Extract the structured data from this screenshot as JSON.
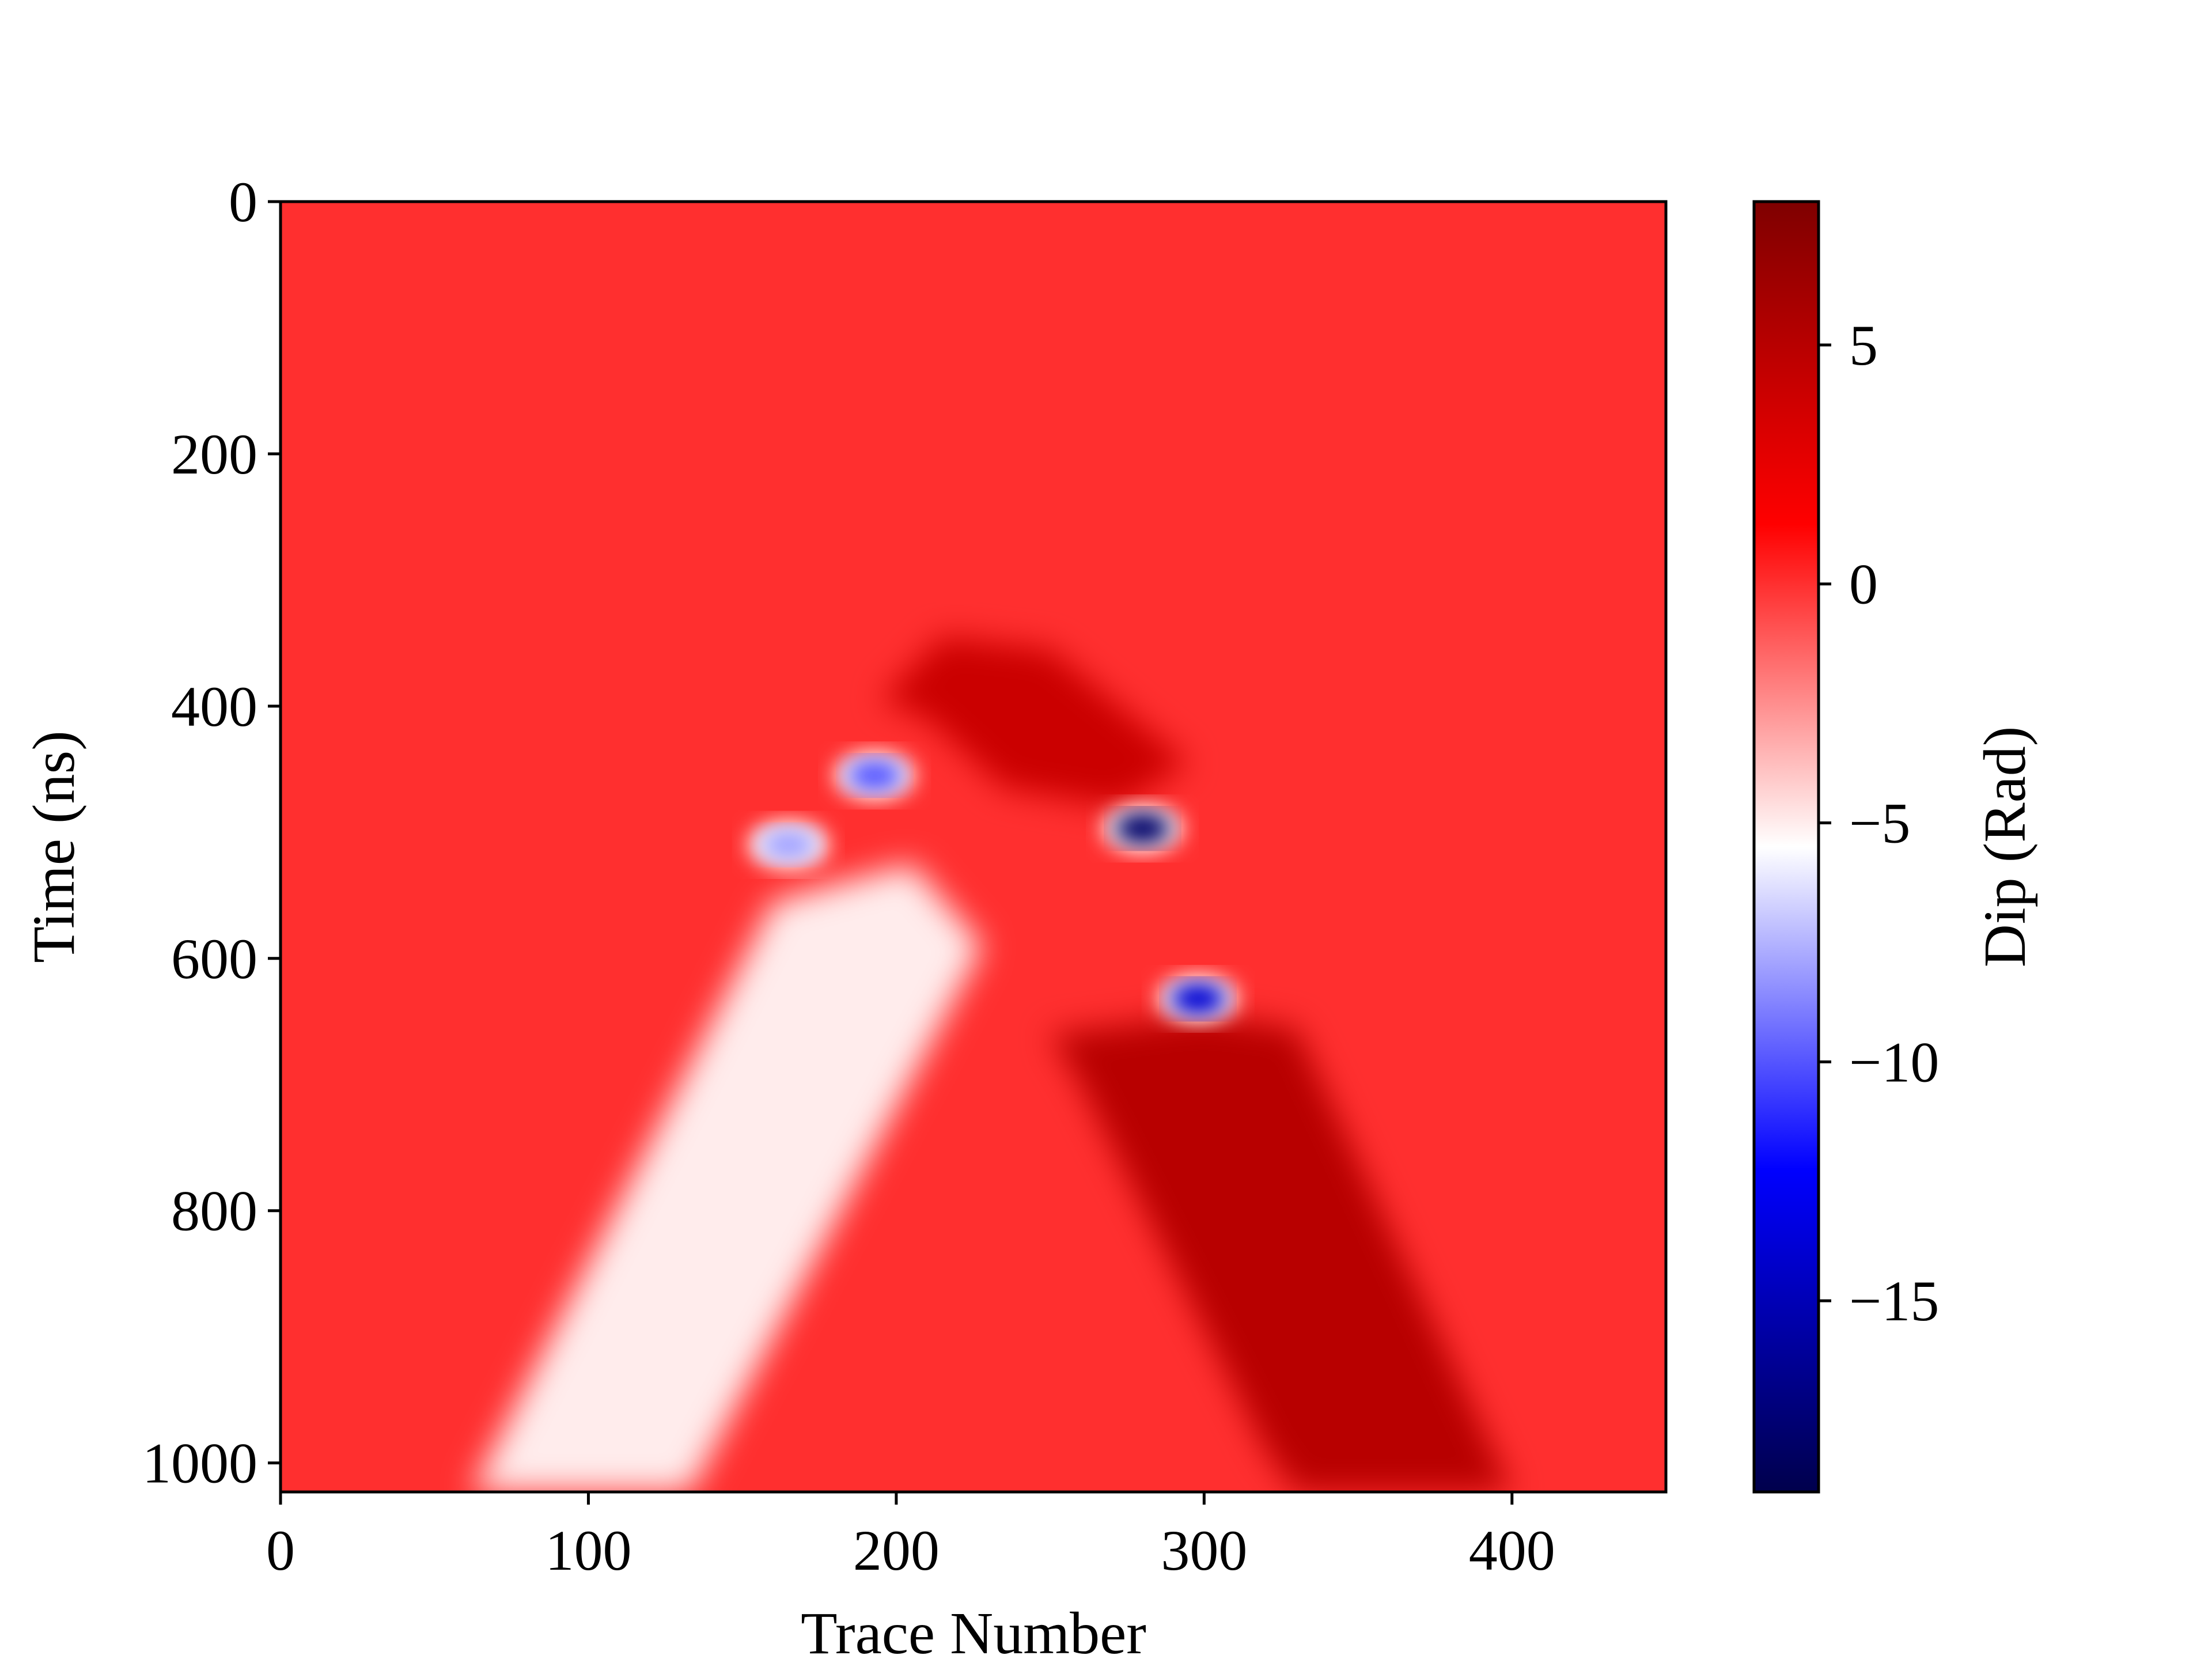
{
  "chart_data": {
    "type": "heatmap",
    "title": "",
    "xlabel": "Trace Number",
    "ylabel": "Time (ns)",
    "xlim": [
      0,
      450
    ],
    "ylim": [
      1023,
      0
    ],
    "x_ticks": [
      "0",
      "100",
      "200",
      "300",
      "400"
    ],
    "x_tick_values": [
      0,
      100,
      200,
      300,
      400
    ],
    "y_ticks": [
      "0",
      "200",
      "400",
      "600",
      "800",
      "1000"
    ],
    "y_tick_values": [
      0,
      200,
      400,
      600,
      800,
      1000
    ],
    "colorbar": {
      "label": "Dip (Rad)",
      "range": [
        -19,
        8
      ],
      "ticks": [
        "5",
        "0",
        "−5",
        "−10",
        "−15"
      ],
      "tick_values": [
        5,
        0,
        -5,
        -10,
        -15
      ],
      "colormap": "seismic",
      "colors": [
        "#00004c",
        "#0000ff",
        "#ffffff",
        "#ff0000",
        "#7f0000"
      ]
    },
    "background_value": 0,
    "features": [
      {
        "name": "left limb",
        "value": -5,
        "polygon": [
          [
            62,
            1023
          ],
          [
            133,
            1023
          ],
          [
            228,
            590
          ],
          [
            205,
            525
          ],
          [
            160,
            555
          ]
        ]
      },
      {
        "name": "right limb",
        "value": 5,
        "polygon": [
          [
            250,
            660
          ],
          [
            300,
            645
          ],
          [
            330,
            655
          ],
          [
            400,
            1023
          ],
          [
            330,
            1023
          ],
          [
            320,
            990
          ],
          [
            260,
            700
          ]
        ]
      },
      {
        "name": "apex",
        "value": 4,
        "polygon": [
          [
            215,
            345
          ],
          [
            250,
            355
          ],
          [
            295,
            445
          ],
          [
            272,
            480
          ],
          [
            235,
            465
          ],
          [
            210,
            410
          ],
          [
            195,
            395
          ]
        ]
      },
      {
        "name": "spot",
        "value": -18,
        "x": 280,
        "y": 497
      },
      {
        "name": "spot",
        "value": -14,
        "x": 298,
        "y": 632
      },
      {
        "name": "spot",
        "value": -10,
        "x": 193,
        "y": 455
      },
      {
        "name": "spot",
        "value": -8,
        "x": 165,
        "y": 510
      }
    ]
  }
}
